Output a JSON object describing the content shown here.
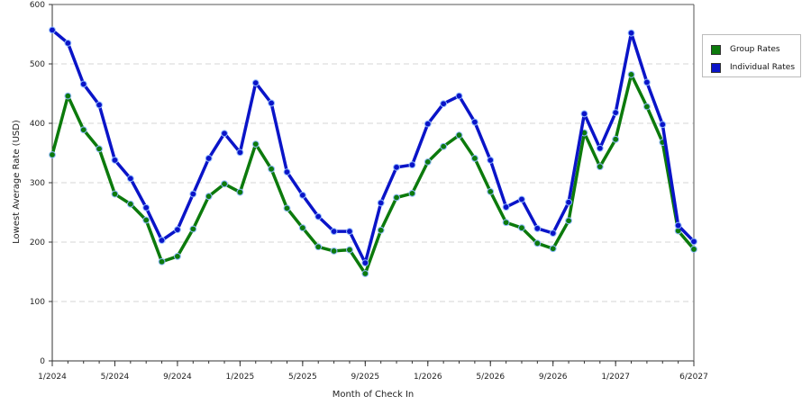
{
  "chart_data": {
    "type": "line",
    "xlabel": "Month of Check In",
    "ylabel": "Lowest Average Rate (USD)",
    "ylim": [
      0,
      600
    ],
    "yticks": [
      0,
      100,
      200,
      300,
      400,
      500,
      600
    ],
    "grid": "horizontal dashed",
    "legend_position": "right",
    "x_tick_labels": [
      "1/2024",
      "5/2024",
      "9/2024",
      "1/2025",
      "5/2025",
      "9/2025",
      "1/2026",
      "5/2026",
      "9/2026",
      "1/2027",
      "6/2027"
    ],
    "x": [
      "1/2024",
      "2/2024",
      "3/2024",
      "4/2024",
      "5/2024",
      "6/2024",
      "7/2024",
      "8/2024",
      "9/2024",
      "10/2024",
      "11/2024",
      "12/2024",
      "1/2025",
      "2/2025",
      "3/2025",
      "4/2025",
      "5/2025",
      "6/2025",
      "7/2025",
      "8/2025",
      "9/2025",
      "10/2025",
      "11/2025",
      "12/2025",
      "1/2026",
      "2/2026",
      "3/2026",
      "4/2026",
      "5/2026",
      "6/2026",
      "7/2026",
      "8/2026",
      "9/2026",
      "10/2026",
      "11/2026",
      "12/2026",
      "1/2027",
      "2/2027",
      "3/2027",
      "4/2027",
      "5/2027",
      "6/2027"
    ],
    "series": [
      {
        "name": "Group Rates",
        "color": "#0c7a0c",
        "values": [
          347,
          446,
          389,
          357,
          281,
          264,
          237,
          167,
          176,
          222,
          277,
          298,
          284,
          365,
          323,
          257,
          224,
          192,
          185,
          187,
          147,
          220,
          275,
          282,
          335,
          361,
          380,
          341,
          285,
          233,
          224,
          198,
          189,
          236,
          384,
          327,
          373,
          482,
          428,
          368,
          219,
          188
        ]
      },
      {
        "name": "Individual Rates",
        "color": "#0a14c8",
        "values": [
          557,
          535,
          466,
          431,
          338,
          307,
          258,
          203,
          221,
          281,
          341,
          383,
          351,
          468,
          434,
          318,
          279,
          243,
          218,
          218,
          165,
          266,
          326,
          330,
          399,
          433,
          446,
          402,
          338,
          259,
          272,
          223,
          215,
          267,
          416,
          358,
          418,
          552,
          469,
          398,
          228,
          201
        ]
      }
    ]
  }
}
